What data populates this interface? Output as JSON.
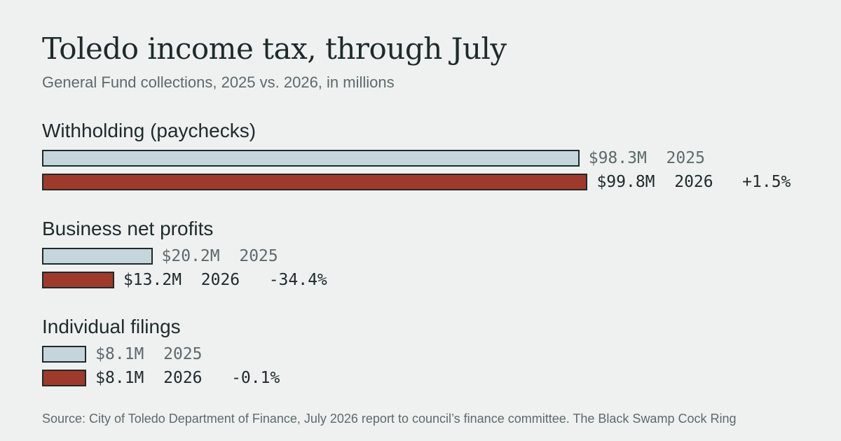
{
  "header": {
    "title": "Toledo income tax, through July",
    "subtitle": "General Fund collections, 2025 vs. 2026, in millions"
  },
  "chart_data": {
    "type": "bar",
    "orientation": "horizontal",
    "title": "Toledo income tax, through July",
    "subtitle": "General Fund collections, 2025 vs. 2026, in millions",
    "categories": [
      "Withholding (paychecks)",
      "Business net profits",
      "Individual filings"
    ],
    "series": [
      {
        "name": "2025",
        "values": [
          98.3,
          20.2,
          8.1
        ],
        "labels": [
          "$98.3M",
          "$20.2M",
          "$8.1M"
        ],
        "color": "#c4d6dc"
      },
      {
        "name": "2026",
        "values": [
          99.8,
          13.2,
          8.1
        ],
        "labels": [
          "$99.8M",
          "$13.2M",
          "$8.1M"
        ],
        "color": "#9e3a2c"
      }
    ],
    "changes": [
      "+1.5%",
      "-34.4%",
      "-0.1%"
    ],
    "xlim": [
      0,
      100
    ],
    "grid": false,
    "legend": "none"
  },
  "footer": {
    "source": "Source: City of Toledo Department of Finance, July 2026 report to council’s finance committee.  The Black Swamp Cock Ring"
  },
  "colors": {
    "background": "#eef1f0",
    "bar_2025": "#c4d6dc",
    "bar_2026": "#9e3a2c",
    "text": "#1f2a2b",
    "muted": "#5e6a6a"
  }
}
